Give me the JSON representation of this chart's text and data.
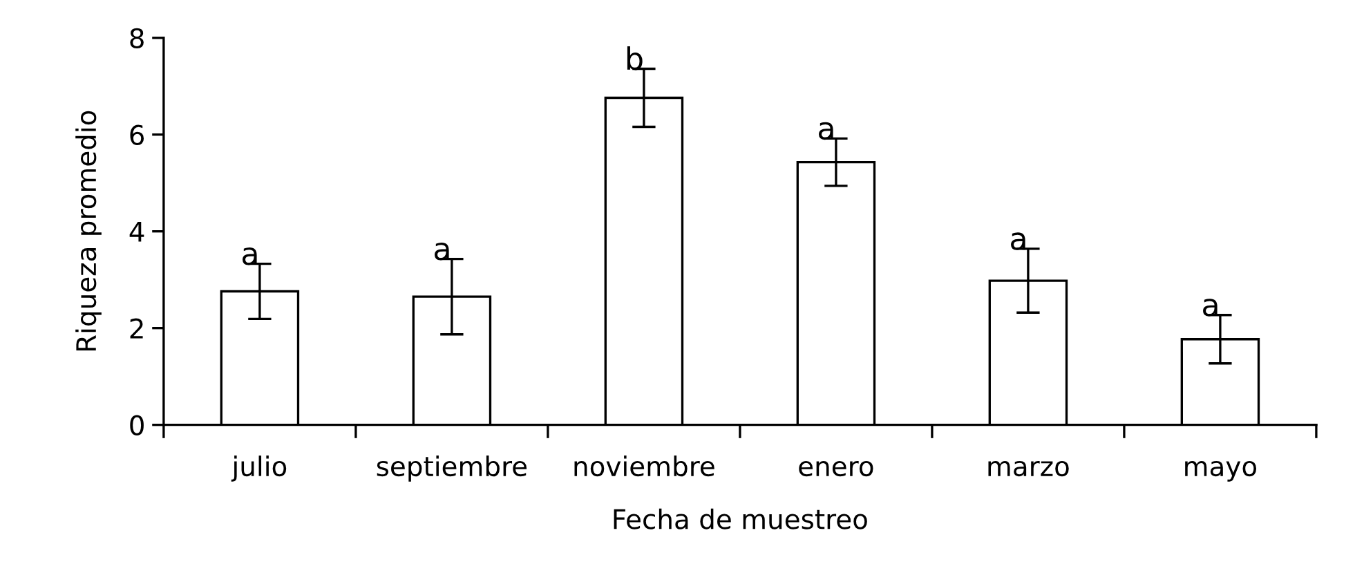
{
  "chart_data": {
    "type": "bar",
    "xlabel": "Fecha de muestreo",
    "ylabel": "Riqueza promedio",
    "categories": [
      "julio",
      "septiembre",
      "noviembre",
      "enero",
      "marzo",
      "mayo"
    ],
    "values": [
      2.76,
      2.65,
      6.76,
      5.43,
      2.98,
      1.77
    ],
    "errors": [
      0.57,
      0.78,
      0.6,
      0.49,
      0.66,
      0.5
    ],
    "color": "#ffffff",
    "ylim": [
      0,
      8
    ],
    "yticks": [
      0,
      2,
      4,
      6,
      8
    ],
    "grid": false,
    "value_labels": [
      "a",
      "a",
      "b",
      "a",
      "a",
      "a"
    ]
  }
}
